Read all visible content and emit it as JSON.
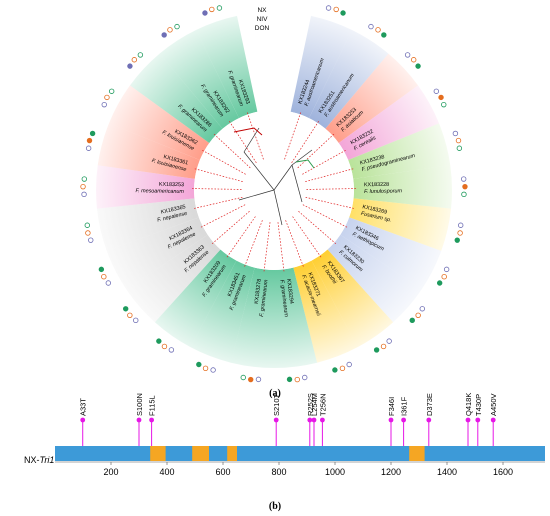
{
  "legend": {
    "lines": [
      "NX",
      "NIV",
      "DON"
    ]
  },
  "panel_labels": {
    "a": "(a)",
    "b": "(b)"
  },
  "legend_colors": {
    "nx": "#6f6fb5",
    "niv": "#e46d1f",
    "don": "#1e9a5d"
  },
  "tree": {
    "sectors": [
      {
        "id": "KX183244",
        "species": "F. austroamericanum",
        "color": "#9fb3dc",
        "icons": [
          "nx-open",
          "niv-open",
          "don-filled"
        ]
      },
      {
        "id": "KX183251",
        "species": "F. austroamericanum",
        "color": "#9fb3dc",
        "icons": [
          "nx-open",
          "niv-open",
          "don-filled"
        ]
      },
      {
        "id": "KX183253",
        "species": "F. asiaticum",
        "color": "#ff9e8a",
        "icons": [
          "nx-open",
          "niv-open",
          "don-filled"
        ]
      },
      {
        "id": "KX183232",
        "species": "F. cerealis",
        "color": "#f3a6d8",
        "icons": [
          "nx-open",
          "niv-filled",
          "don-open"
        ]
      },
      {
        "id": "KX183238",
        "species": "F. pseudograminearum",
        "color": "#b9e39a",
        "icons": [
          "nx-open",
          "niv-open",
          "don-open"
        ]
      },
      {
        "id": "KX183228",
        "species": "F. lunulosporum",
        "color": "#b9e39a",
        "icons": [
          "nx-open",
          "niv-filled",
          "don-open"
        ]
      },
      {
        "id": "KX183269",
        "species": "Fusarium sp.",
        "color": "#ffe066",
        "icons": [
          "nx-open",
          "niv-open",
          "don-filled"
        ]
      },
      {
        "id": "KX183346",
        "species": "F. aethiopicum",
        "color": "#c7d3ee",
        "icons": [
          "nx-open",
          "niv-open",
          "don-filled"
        ]
      },
      {
        "id": "KX183230",
        "species": "F. culmorum",
        "color": "#c7d3ee",
        "icons": [
          "nx-open",
          "niv-open",
          "don-filled"
        ]
      },
      {
        "id": "KX183367",
        "species": "F. boothii",
        "color": "#ffcf33",
        "icons": [
          "nx-open",
          "niv-open",
          "don-filled"
        ]
      },
      {
        "id": "KX183271",
        "species": "F. acacia-mearnsii",
        "color": "#ffcf33",
        "icons": [
          "nx-open",
          "niv-open",
          "don-filled"
        ]
      },
      {
        "id": "KX183294",
        "species": "F. graminearum",
        "color": "#66c9a0",
        "icons": [
          "nx-open",
          "niv-open",
          "don-filled"
        ]
      },
      {
        "id": "KX183278",
        "species": "F. graminearum",
        "color": "#66c9a0",
        "icons": [
          "nx-open",
          "niv-filled",
          "don-open"
        ]
      },
      {
        "id": "KX183451",
        "species": "F. graminearum",
        "color": "#66c9a0",
        "icons": [
          "nx-open",
          "niv-open",
          "don-filled"
        ]
      },
      {
        "id": "KX183209",
        "species": "F. graminearum",
        "color": "#66c9a0",
        "icons": [
          "nx-open",
          "niv-open",
          "don-filled"
        ]
      },
      {
        "id": "KX183363",
        "species": "F. nepalense",
        "color": "#d9d9d9",
        "icons": [
          "nx-open",
          "niv-open",
          "don-filled"
        ]
      },
      {
        "id": "KX183364",
        "species": "F. nepalense",
        "color": "#d9d9d9",
        "icons": [
          "nx-open",
          "niv-open",
          "don-filled"
        ]
      },
      {
        "id": "KX183365",
        "species": "F. nepalense",
        "color": "#d9d9d9",
        "icons": [
          "nx-open",
          "niv-open",
          "don-open"
        ]
      },
      {
        "id": "KX183253",
        "species": "F. mesoamericanum",
        "color": "#f3a6d8",
        "icons": [
          "nx-open",
          "niv-open",
          "don-open"
        ]
      },
      {
        "id": "KX183361",
        "species": "F. louisianense",
        "color": "#ff9e8a",
        "icons": [
          "nx-open",
          "niv-filled",
          "don-filled"
        ]
      },
      {
        "id": "KX183362",
        "species": "F. louisianense",
        "color": "#ff9e8a",
        "icons": [
          "nx-open",
          "niv-open",
          "don-open"
        ]
      },
      {
        "id": "KX183286",
        "species": "F. graminearum",
        "color": "#66c9a0",
        "icons": [
          "nx-filled",
          "niv-open",
          "don-open"
        ]
      },
      {
        "id": "KX183292",
        "species": "F. graminearum",
        "color": "#66c9a0",
        "icons": [
          "nx-filled",
          "niv-open",
          "don-open"
        ]
      },
      {
        "id": "KX183293",
        "species": "F. graminearum",
        "color": "#66c9a0",
        "icons": [
          "nx-filled",
          "niv-open",
          "don-open"
        ]
      }
    ]
  },
  "gene": {
    "name_prefix": "NX-",
    "name_italic": "Tri1",
    "axis_ticks": [
      200,
      400,
      600,
      800,
      1000,
      1200,
      1400,
      1600
    ],
    "axis_max": 1750,
    "bar_color": "#3d9ad8",
    "domain_color": "#f5a623",
    "mutation_color": "#e617e6",
    "domains": [
      [
        340,
        395
      ],
      [
        490,
        550
      ],
      [
        615,
        650
      ],
      [
        1265,
        1320
      ]
    ],
    "mutations": [
      {
        "label": "A33T",
        "pos": 99
      },
      {
        "label": "S100N",
        "pos": 300
      },
      {
        "label": "F115L",
        "pos": 345
      },
      {
        "label": "S210T",
        "pos": 790
      },
      {
        "label": "R252S",
        "pos": 910
      },
      {
        "label": "L254M",
        "pos": 925
      },
      {
        "label": "T256N",
        "pos": 955
      },
      {
        "label": "F346I",
        "pos": 1200
      },
      {
        "label": "I361F",
        "pos": 1245
      },
      {
        "label": "D373E",
        "pos": 1335
      },
      {
        "label": "Q418K",
        "pos": 1475
      },
      {
        "label": "T430P",
        "pos": 1510
      },
      {
        "label": "A450V",
        "pos": 1565
      }
    ]
  }
}
